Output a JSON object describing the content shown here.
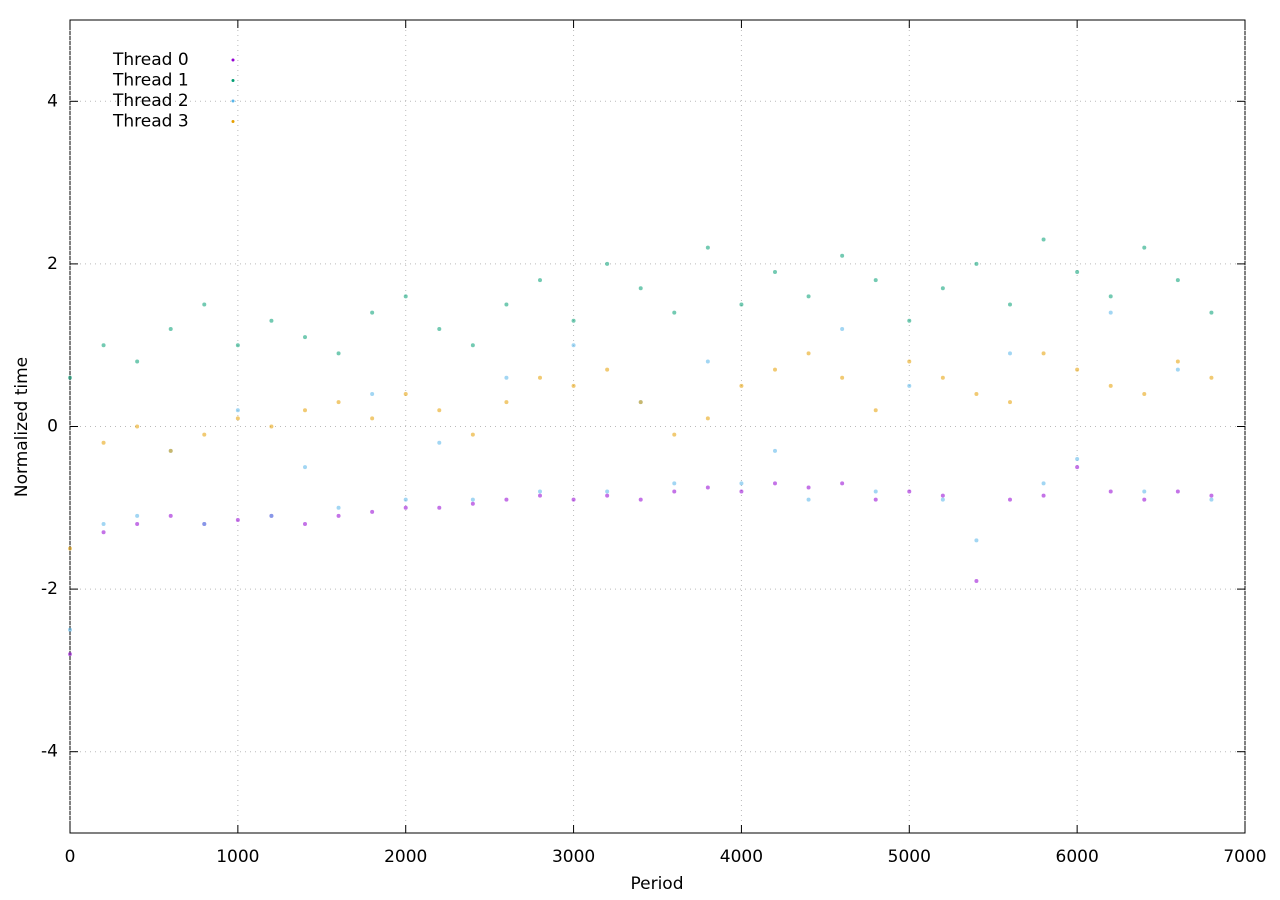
{
  "chart_data": {
    "type": "scatter",
    "x_label": "Period",
    "y_label": "Normalized time",
    "x": [
      0,
      200,
      400,
      600,
      800,
      1000,
      1200,
      1400,
      1600,
      1800,
      2000,
      2200,
      2400,
      2600,
      2800,
      3000,
      3200,
      3400,
      3600,
      3800,
      4000,
      4200,
      4400,
      4600,
      4800,
      5000,
      5200,
      5400,
      5600,
      5800,
      6000,
      6200,
      6400,
      6600,
      6800
    ],
    "series": [
      {
        "name": "Thread 0",
        "color": "#9400d3",
        "values": [
          -2.8,
          -1.3,
          -1.2,
          -1.1,
          -1.2,
          -1.15,
          -1.1,
          -1.2,
          -1.1,
          -1.05,
          -1.0,
          -1.0,
          -0.95,
          -0.9,
          -0.85,
          -0.9,
          -0.85,
          -0.9,
          -0.8,
          -0.75,
          -0.8,
          -0.7,
          -0.75,
          -0.7,
          -0.9,
          -0.8,
          -0.85,
          -1.9,
          -0.9,
          -0.85,
          -0.5,
          -0.8,
          -0.9,
          -0.8,
          -0.85
        ]
      },
      {
        "name": "Thread 1",
        "color": "#009e73",
        "values": [
          0.6,
          1.0,
          0.8,
          1.2,
          1.5,
          1.0,
          1.3,
          1.1,
          0.9,
          1.4,
          1.6,
          1.2,
          1.0,
          1.5,
          1.8,
          1.3,
          2.0,
          1.7,
          1.4,
          2.2,
          1.5,
          1.9,
          1.6,
          2.1,
          1.8,
          1.3,
          1.7,
          2.0,
          1.5,
          2.3,
          1.9,
          1.6,
          2.2,
          1.8,
          1.4
        ]
      },
      {
        "name": "Thread 2",
        "color": "#56b4e9",
        "values": [
          -2.5,
          -1.2,
          -1.1,
          -0.3,
          -1.2,
          0.2,
          -1.1,
          -0.5,
          -1.0,
          0.4,
          -0.9,
          -0.2,
          -0.9,
          0.6,
          -0.8,
          1.0,
          -0.8,
          0.3,
          -0.7,
          0.8,
          -0.7,
          -0.3,
          -0.9,
          1.2,
          -0.8,
          0.5,
          -0.9,
          -1.4,
          0.9,
          -0.7,
          -0.4,
          1.4,
          -0.8,
          0.7,
          -0.9
        ]
      },
      {
        "name": "Thread 3",
        "color": "#e69f00",
        "values": [
          -1.5,
          -0.2,
          0.0,
          -0.3,
          -0.1,
          0.1,
          0.0,
          0.2,
          0.3,
          0.1,
          0.4,
          0.2,
          -0.1,
          0.3,
          0.6,
          0.5,
          0.7,
          0.3,
          -0.1,
          0.1,
          0.5,
          0.7,
          0.9,
          0.6,
          0.2,
          0.8,
          0.6,
          0.4,
          0.3,
          0.9,
          0.7,
          0.5,
          0.4,
          0.8,
          0.6
        ]
      }
    ],
    "xlim": [
      0,
      7000
    ],
    "xticks": [
      0,
      1000,
      2000,
      3000,
      4000,
      5000,
      6000,
      7000
    ],
    "ylim": [
      -5,
      5
    ],
    "yticks": [
      -4,
      -2,
      0,
      2,
      4
    ],
    "grid": true,
    "legend": "top-left"
  }
}
